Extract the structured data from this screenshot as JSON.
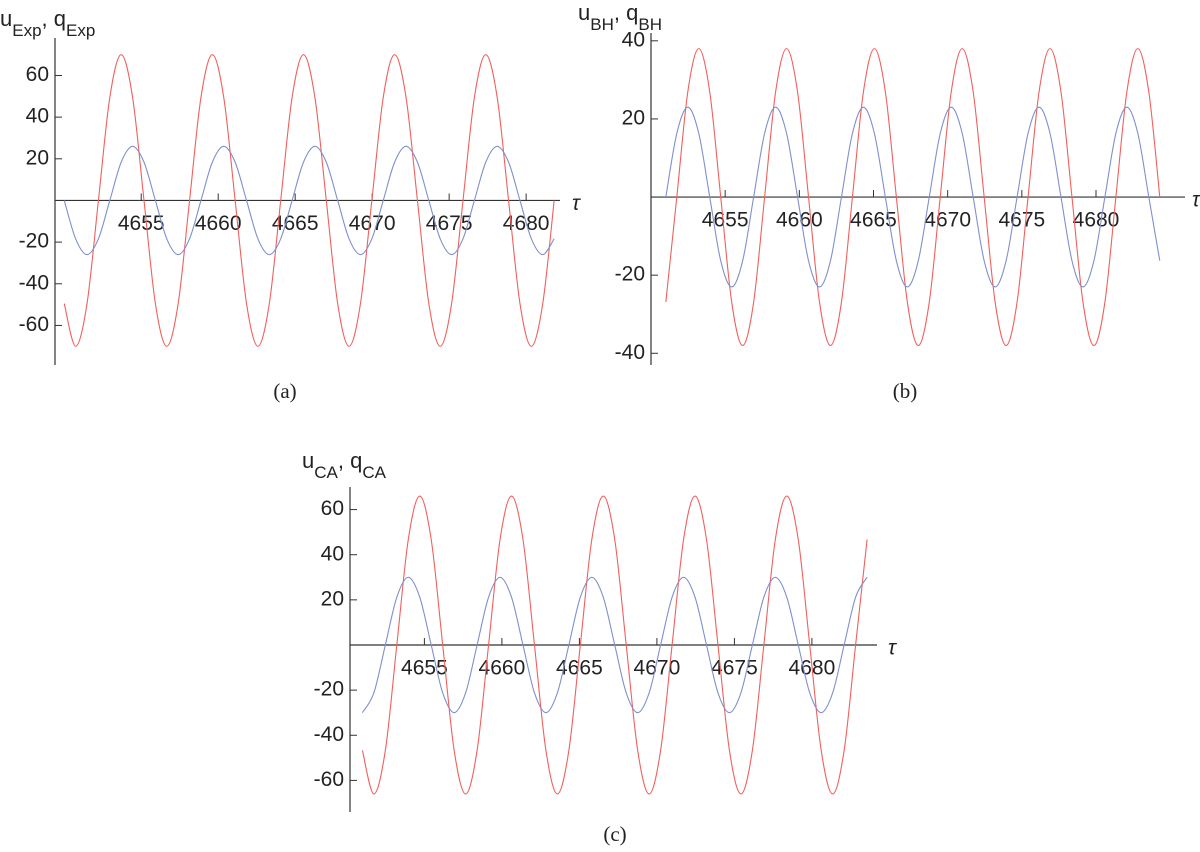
{
  "chart_data": [
    {
      "type": "line",
      "caption": "(a)",
      "xlabel": "τ",
      "ylabel": [
        {
          "text": "u"
        },
        {
          "text": "Exp",
          "sub": true
        },
        {
          "text": ", "
        },
        {
          "text": "q"
        },
        {
          "text": "Exp",
          "sub": true
        }
      ],
      "xlim": [
        4649.4,
        4682.2
      ],
      "ylim": [
        -79,
        78
      ],
      "xticks": [
        4655,
        4660,
        4665,
        4670,
        4675,
        4680
      ],
      "yticks": [
        -60,
        -40,
        -20,
        20,
        40,
        60
      ],
      "x": [
        4650,
        4650.74,
        4651.48,
        4652.22,
        4652.96,
        4653.7,
        4654.44,
        4655.18,
        4655.92,
        4656.66,
        4657.4,
        4658.14,
        4658.88,
        4659.62,
        4660.36,
        4661.1,
        4661.84,
        4662.58,
        4663.32,
        4664.06,
        4664.8,
        4665.54,
        4666.28,
        4667.02,
        4667.76,
        4668.5,
        4669.24,
        4669.98,
        4670.72,
        4671.46,
        4672.2,
        4672.94,
        4673.68,
        4674.42,
        4675.16,
        4675.9,
        4676.64,
        4677.38,
        4678.12,
        4678.86,
        4679.6,
        4680.34,
        4681.08,
        4681.82
      ],
      "series": [
        {
          "color": "#f0605c",
          "values": [
            -49.5,
            -70,
            -49.5,
            0,
            49.5,
            70,
            49.5,
            0,
            -49.5,
            -70,
            -49.5,
            0,
            49.5,
            70,
            49.5,
            0,
            -49.5,
            -70,
            -49.5,
            0,
            49.5,
            70,
            49.5,
            0,
            -49.5,
            -70,
            -49.5,
            0,
            49.5,
            70,
            49.5,
            0,
            -49.5,
            -70,
            -49.5,
            0,
            49.5,
            70,
            49.5,
            0,
            -49.5,
            -70,
            -49.5,
            0
          ]
        },
        {
          "color": "#7f90cc",
          "values": [
            0,
            -18.4,
            -26,
            -18.4,
            0,
            18.4,
            26,
            18.4,
            0,
            -18.4,
            -26,
            -18.4,
            0,
            18.4,
            26,
            18.4,
            0,
            -18.4,
            -26,
            -18.4,
            0,
            18.4,
            26,
            18.4,
            0,
            -18.4,
            -26,
            -18.4,
            0,
            18.4,
            26,
            18.4,
            0,
            -18.4,
            -26,
            -18.4,
            0,
            18.4,
            26,
            18.4,
            0,
            -18.4,
            -26,
            -18.4
          ]
        }
      ]
    },
    {
      "type": "line",
      "caption": "(b)",
      "xlabel": "τ",
      "ylabel": [
        {
          "text": "u"
        },
        {
          "text": "BH",
          "sub": true
        },
        {
          "text": ", "
        },
        {
          "text": "q"
        },
        {
          "text": "BH",
          "sub": true
        }
      ],
      "xlim": [
        4650,
        4686
      ],
      "ylim": [
        -43,
        42
      ],
      "xticks": [
        4655,
        4660,
        4665,
        4670,
        4675,
        4680
      ],
      "yticks": [
        -40,
        -20,
        20,
        40
      ],
      "x": [
        4651,
        4651.74,
        4652.48,
        4653.22,
        4653.96,
        4654.7,
        4655.44,
        4656.18,
        4656.92,
        4657.66,
        4658.4,
        4659.14,
        4659.88,
        4660.62,
        4661.36,
        4662.1,
        4662.84,
        4663.58,
        4664.32,
        4665.06,
        4665.8,
        4666.54,
        4667.28,
        4668.02,
        4668.76,
        4669.5,
        4670.24,
        4670.98,
        4671.72,
        4672.46,
        4673.2,
        4673.94,
        4674.68,
        4675.42,
        4676.16,
        4676.9,
        4677.64,
        4678.38,
        4679.12,
        4679.86,
        4680.6,
        4681.34,
        4682.08,
        4682.82,
        4683.56,
        4684.3
      ],
      "series": [
        {
          "color": "#f0605c",
          "values": [
            -26.9,
            0,
            26.9,
            38,
            26.9,
            0,
            -26.9,
            -38,
            -26.9,
            0,
            26.9,
            38,
            26.9,
            0,
            -26.9,
            -38,
            -26.9,
            0,
            26.9,
            38,
            26.9,
            0,
            -26.9,
            -38,
            -26.9,
            0,
            26.9,
            38,
            26.9,
            0,
            -26.9,
            -38,
            -26.9,
            0,
            26.9,
            38,
            26.9,
            0,
            -26.9,
            -38,
            -26.9,
            0,
            26.9,
            38,
            26.9,
            0
          ]
        },
        {
          "color": "#7f90cc",
          "values": [
            0,
            16.3,
            23,
            16.3,
            0,
            -16.3,
            -23,
            -16.3,
            0,
            16.3,
            23,
            16.3,
            0,
            -16.3,
            -23,
            -16.3,
            0,
            16.3,
            23,
            16.3,
            0,
            -16.3,
            -23,
            -16.3,
            0,
            16.3,
            23,
            16.3,
            0,
            -16.3,
            -23,
            -16.3,
            0,
            16.3,
            23,
            16.3,
            0,
            -16.3,
            -23,
            -16.3,
            0,
            16.3,
            23,
            16.3,
            0,
            -16.3
          ]
        }
      ]
    },
    {
      "type": "line",
      "caption": "(c)",
      "xlabel": "τ",
      "ylabel": [
        {
          "text": "u"
        },
        {
          "text": "CA",
          "sub": true
        },
        {
          "text": ", "
        },
        {
          "text": "q"
        },
        {
          "text": "CA",
          "sub": true
        }
      ],
      "xlim": [
        4650.2,
        4684.2
      ],
      "ylim": [
        -74,
        70
      ],
      "xticks": [
        4655,
        4660,
        4665,
        4670,
        4675,
        4680
      ],
      "yticks": [
        -60,
        -40,
        -20,
        20,
        40,
        60
      ],
      "x": [
        4651,
        4651.74,
        4652.48,
        4653.22,
        4653.96,
        4654.7,
        4655.44,
        4656.18,
        4656.92,
        4657.66,
        4658.4,
        4659.14,
        4659.88,
        4660.62,
        4661.36,
        4662.1,
        4662.84,
        4663.58,
        4664.32,
        4665.06,
        4665.8,
        4666.54,
        4667.28,
        4668.02,
        4668.76,
        4669.5,
        4670.24,
        4670.98,
        4671.72,
        4672.46,
        4673.2,
        4673.94,
        4674.68,
        4675.42,
        4676.16,
        4676.9,
        4677.64,
        4678.38,
        4679.12,
        4679.86,
        4680.6,
        4681.34,
        4682.08,
        4682.82,
        4683.56
      ],
      "series": [
        {
          "color": "#f0605c",
          "values": [
            -46.7,
            -66,
            -46.7,
            0,
            46.7,
            66,
            46.7,
            0,
            -46.7,
            -66,
            -46.7,
            0,
            46.7,
            66,
            46.7,
            0,
            -46.7,
            -66,
            -46.7,
            0,
            46.7,
            66,
            46.7,
            0,
            -46.7,
            -66,
            -46.7,
            0,
            46.7,
            66,
            46.7,
            0,
            -46.7,
            -66,
            -46.7,
            0,
            46.7,
            66,
            46.7,
            0,
            -46.7,
            -66,
            -46.7,
            0,
            46.7
          ]
        },
        {
          "color": "#7f90cc",
          "values": [
            -30,
            -21.2,
            0,
            21.2,
            30,
            21.2,
            0,
            -21.2,
            -30,
            -21.2,
            0,
            21.2,
            30,
            21.2,
            0,
            -21.2,
            -30,
            -21.2,
            0,
            21.2,
            30,
            21.2,
            0,
            -21.2,
            -30,
            -21.2,
            0,
            21.2,
            30,
            21.2,
            0,
            -21.2,
            -30,
            -21.2,
            0,
            21.2,
            30,
            21.2,
            0,
            -21.2,
            -30,
            -21.2,
            0,
            21.2,
            30
          ]
        }
      ]
    }
  ]
}
